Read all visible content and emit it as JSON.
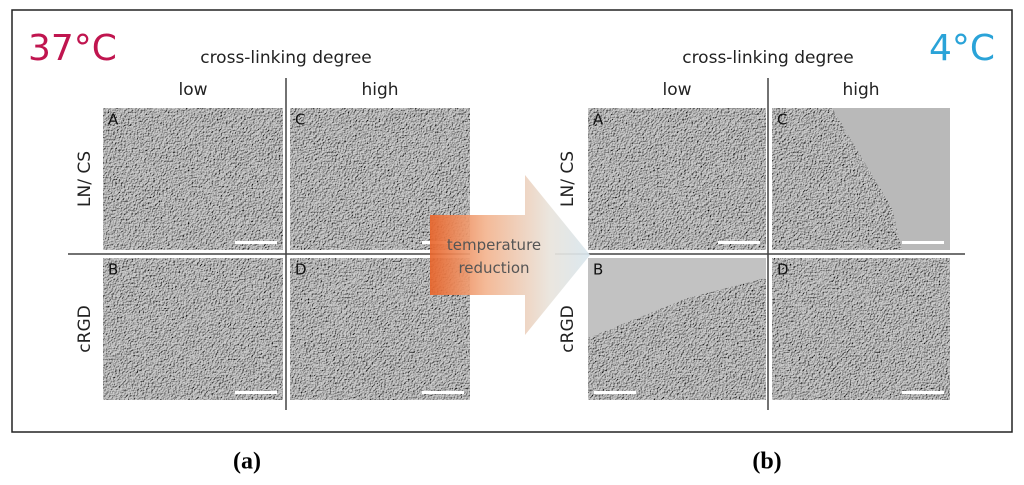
{
  "panels": [
    {
      "temperature": "37°C",
      "header": "cross-linking degree",
      "columns": [
        "low",
        "high"
      ],
      "rows": [
        "LN/ CS",
        "cRGD"
      ],
      "images": [
        [
          "A",
          "C"
        ],
        [
          "B",
          "D"
        ]
      ],
      "caption": "(a)"
    },
    {
      "temperature": "4°C",
      "header": "cross-linking degree",
      "columns": [
        "low",
        "high"
      ],
      "rows": [
        "LN/ CS",
        "cRGD"
      ],
      "images": [
        [
          "A",
          "C"
        ],
        [
          "B",
          "D"
        ]
      ],
      "caption": "(b)"
    }
  ],
  "arrow": {
    "label": "temperature reduction"
  }
}
